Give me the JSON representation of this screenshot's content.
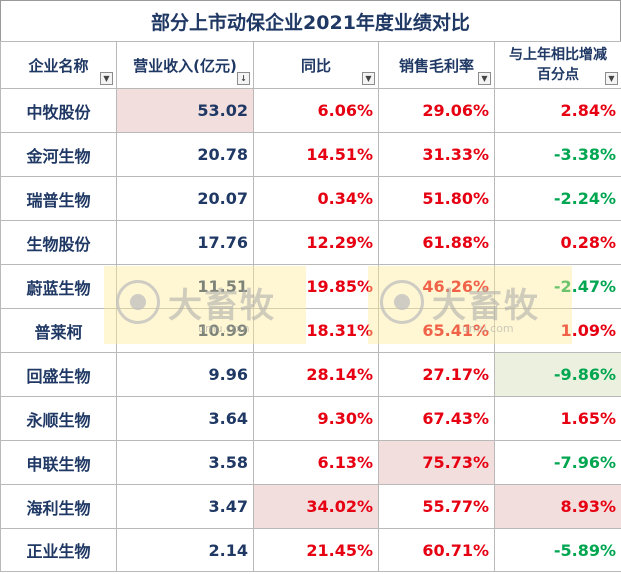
{
  "title": "部分上市动保企业2021年度业绩对比",
  "headers": [
    "企业名称",
    "营业收入(亿元)",
    "同比",
    "销售毛利率",
    "与上年相比增减百分点"
  ],
  "rows": [
    {
      "name": "中牧股份",
      "revenue": "53.02",
      "yoy": "6.06%",
      "margin": "29.06%",
      "change": "2.84%"
    },
    {
      "name": "金河生物",
      "revenue": "20.78",
      "yoy": "14.51%",
      "margin": "31.33%",
      "change": "-3.38%"
    },
    {
      "name": "瑞普生物",
      "revenue": "20.07",
      "yoy": "0.34%",
      "margin": "51.80%",
      "change": "-2.24%"
    },
    {
      "name": "生物股份",
      "revenue": "17.76",
      "yoy": "12.29%",
      "margin": "61.88%",
      "change": "0.28%"
    },
    {
      "name": "蔚蓝生物",
      "revenue": "11.51",
      "yoy": "19.85%",
      "margin": "46.26%",
      "change": "-2.47%"
    },
    {
      "name": "普莱柯",
      "revenue": "10.99",
      "yoy": "18.31%",
      "margin": "65.41%",
      "change": "1.09%"
    },
    {
      "name": "回盛生物",
      "revenue": "9.96",
      "yoy": "28.14%",
      "margin": "27.17%",
      "change": "-9.86%"
    },
    {
      "name": "永顺生物",
      "revenue": "3.64",
      "yoy": "9.30%",
      "margin": "67.43%",
      "change": "1.65%"
    },
    {
      "name": "申联生物",
      "revenue": "3.58",
      "yoy": "6.13%",
      "margin": "75.73%",
      "change": "-7.96%"
    },
    {
      "name": "海利生物",
      "revenue": "3.47",
      "yoy": "34.02%",
      "margin": "55.77%",
      "change": "8.93%"
    },
    {
      "name": "正业生物",
      "revenue": "2.14",
      "yoy": "21.45%",
      "margin": "60.71%",
      "change": "-5.89%"
    }
  ],
  "watermark": {
    "text": "大畜牧",
    "sub": "umu.com"
  },
  "colors": {
    "positive": "#e60012",
    "negative": "#00a650",
    "highlight": "#f3dede",
    "header_text": "#1f3864"
  }
}
